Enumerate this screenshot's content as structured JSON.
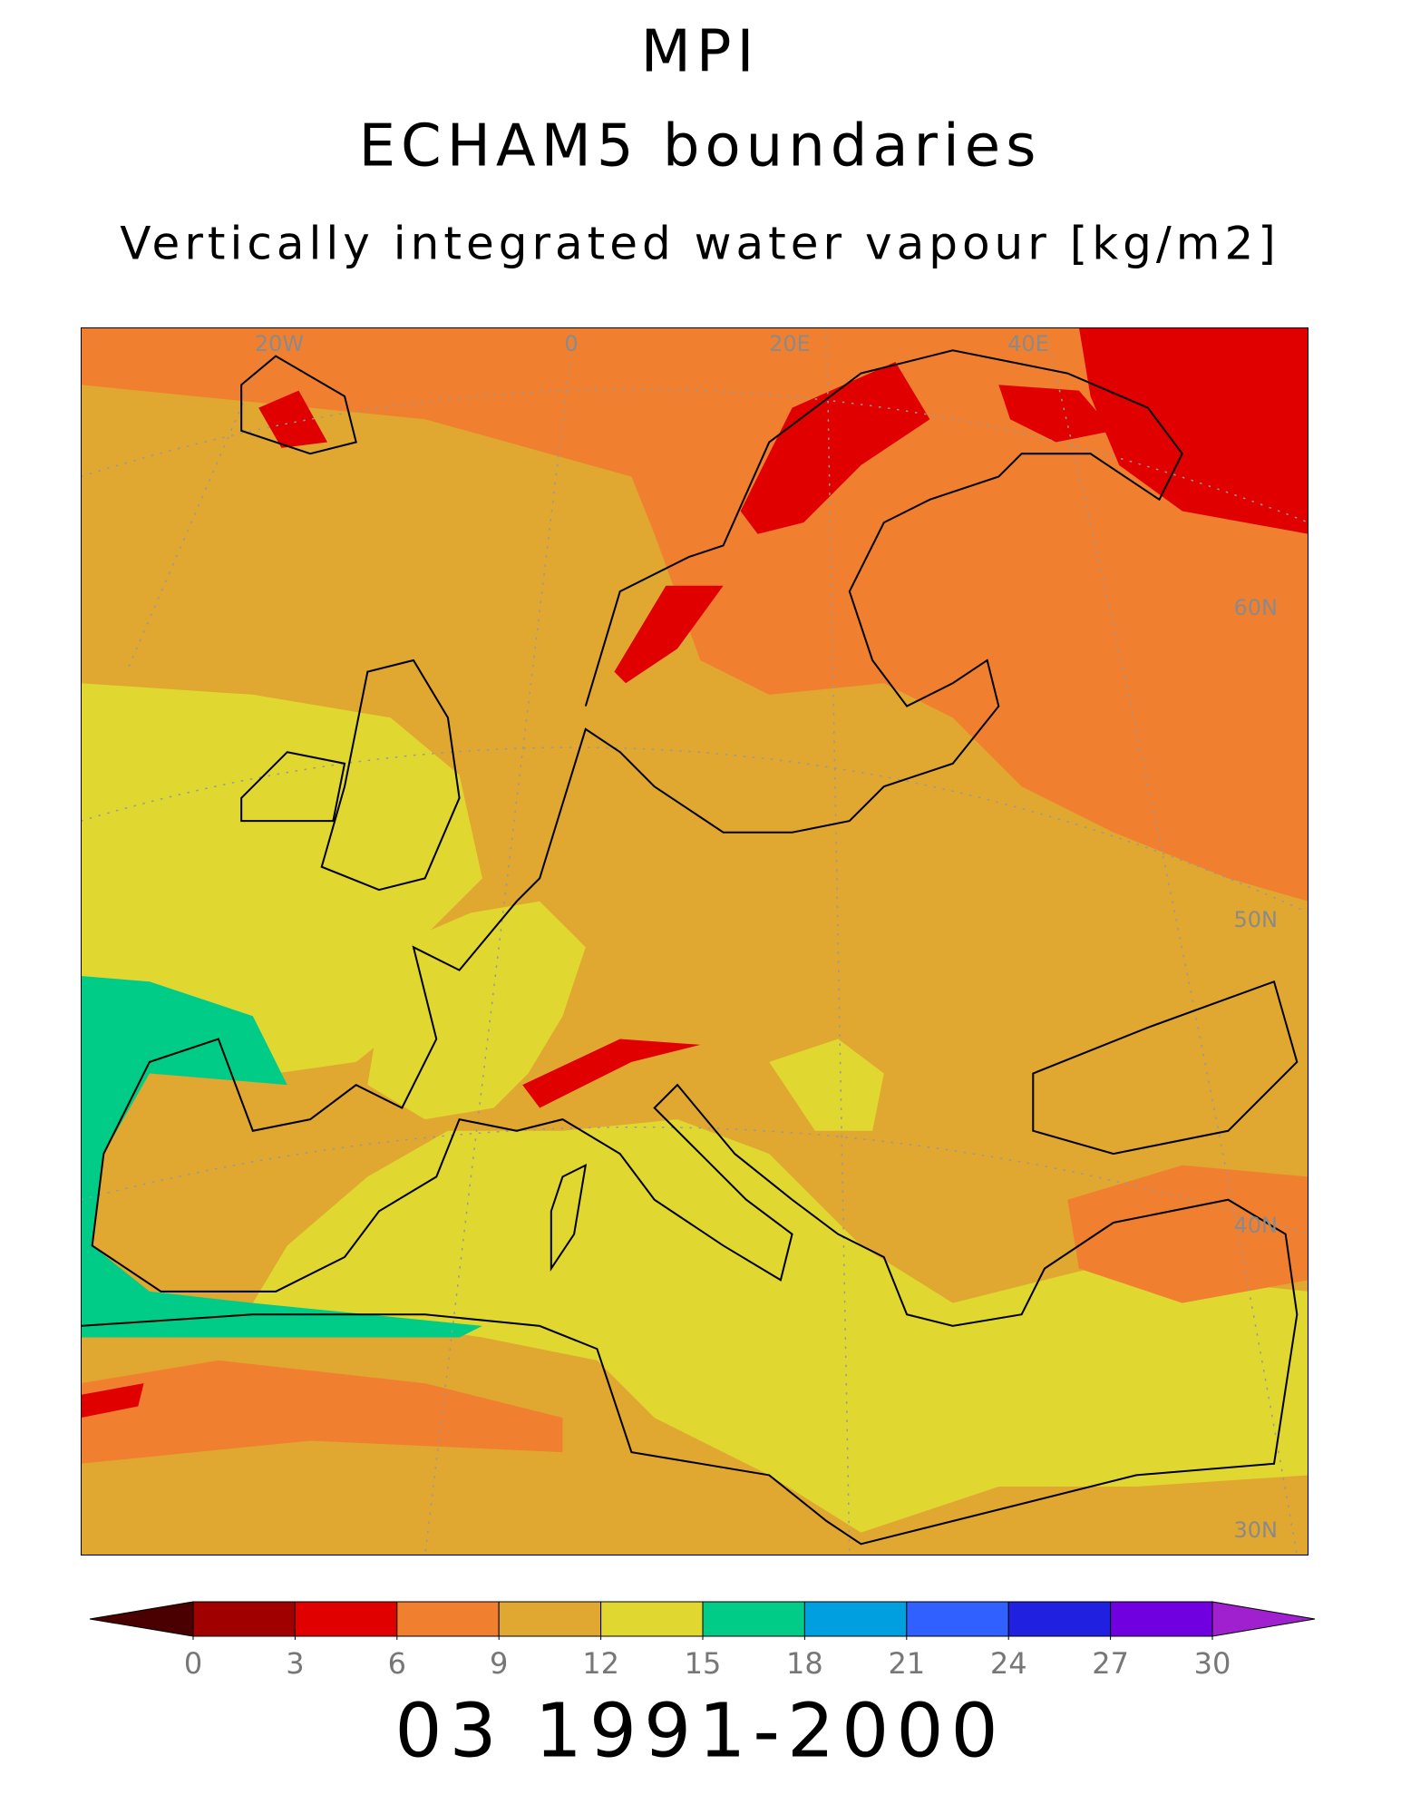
{
  "title": "MPI",
  "subtitle": "ECHAM5 boundaries",
  "variable": "Vertically integrated water vapour [kg/m2]",
  "period": "03 1991-2000",
  "graticule_labels": [
    "20W",
    "0",
    "20E",
    "40E",
    "60N",
    "50N",
    "40N",
    "30N"
  ],
  "colorbar": {
    "ticks": [
      0,
      3,
      6,
      9,
      12,
      15,
      18,
      21,
      24,
      27,
      30
    ],
    "under_color": "#4a0000",
    "colors": [
      "#a00000",
      "#e00000",
      "#f08030",
      "#e0a830",
      "#e0d830",
      "#00cc88",
      "#00a0e0",
      "#3060ff",
      "#2020e0",
      "#7000e0"
    ],
    "over_color": "#a020d0"
  }
}
